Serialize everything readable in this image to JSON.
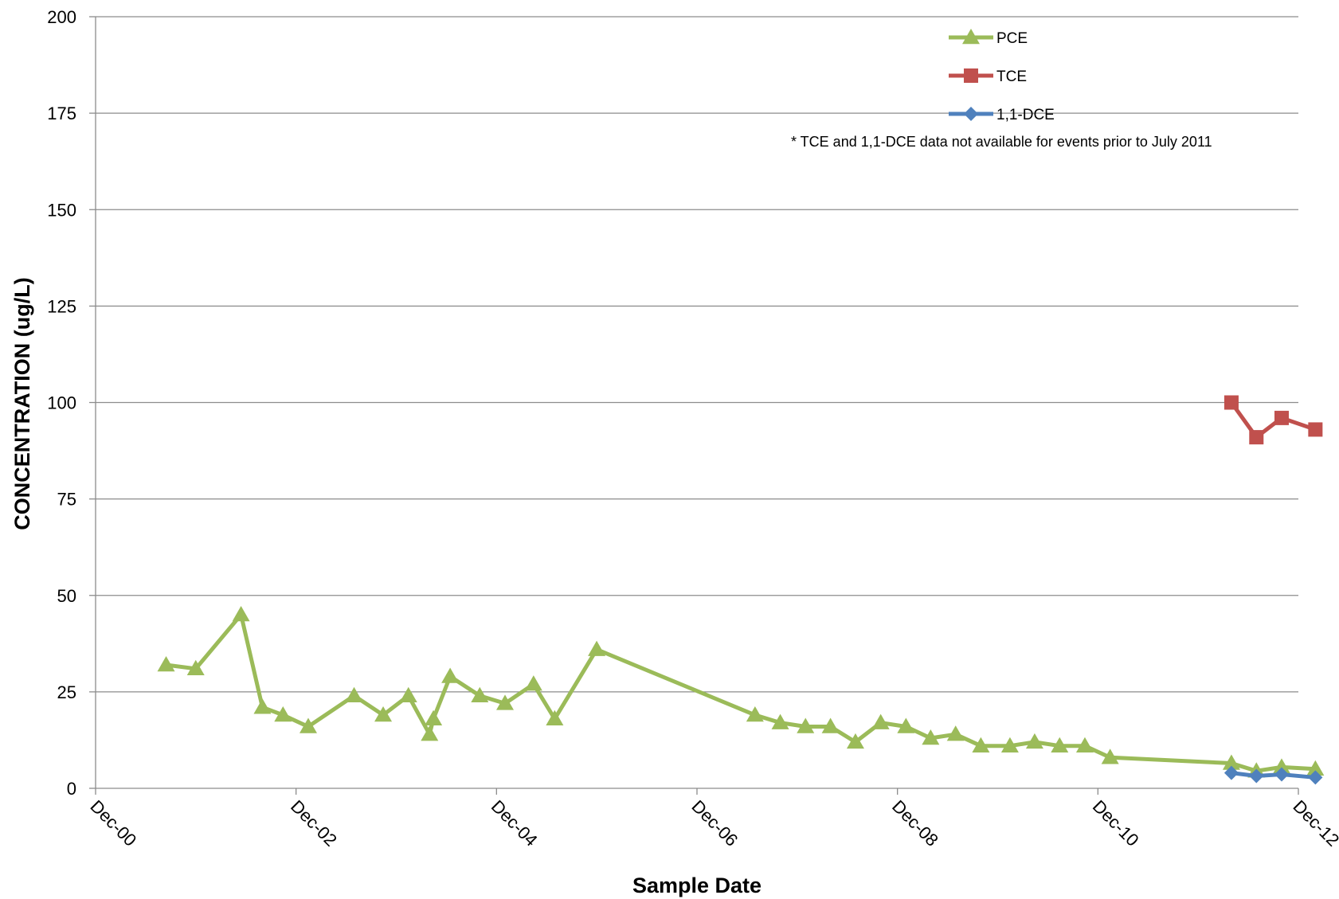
{
  "chart_data": {
    "type": "line",
    "xlabel": "Sample Date",
    "ylabel": "CONCENTRATION (ug/L)",
    "xlim": [
      "2000-12-01",
      "2012-12-01"
    ],
    "ylim": [
      0,
      200
    ],
    "x_ticks": [
      "Dec-00",
      "Dec-02",
      "Dec-04",
      "Dec-06",
      "Dec-08",
      "Dec-10",
      "Dec-12"
    ],
    "y_ticks": [
      0,
      25,
      50,
      75,
      100,
      125,
      150,
      175,
      200
    ],
    "grid": "horizontal",
    "legend_position": "top-right",
    "annotation": "* TCE and 1,1-DCE data not available for events prior to July 2011",
    "series": [
      {
        "name": "PCE",
        "color": "#9bbb59",
        "marker": "triangle",
        "points": [
          [
            "2001-08-15",
            32
          ],
          [
            "2001-12-01",
            31
          ],
          [
            "2002-05-15",
            45
          ],
          [
            "2002-08-01",
            21
          ],
          [
            "2002-10-15",
            19
          ],
          [
            "2003-01-15",
            16
          ],
          [
            "2003-07-01",
            24
          ],
          [
            "2003-10-15",
            19
          ],
          [
            "2004-01-15",
            24
          ],
          [
            "2004-04-01",
            14
          ],
          [
            "2004-04-15",
            18
          ],
          [
            "2004-06-15",
            29
          ],
          [
            "2004-10-01",
            24
          ],
          [
            "2005-01-01",
            22
          ],
          [
            "2005-04-15",
            27
          ],
          [
            "2005-07-01",
            18
          ],
          [
            "2005-12-01",
            36
          ],
          [
            "2007-07-01",
            19
          ],
          [
            "2007-10-01",
            17
          ],
          [
            "2008-01-01",
            16
          ],
          [
            "2008-04-01",
            16
          ],
          [
            "2008-07-01",
            12
          ],
          [
            "2008-10-01",
            17
          ],
          [
            "2009-01-01",
            16
          ],
          [
            "2009-04-01",
            13
          ],
          [
            "2009-07-01",
            14
          ],
          [
            "2009-10-01",
            11
          ],
          [
            "2010-01-15",
            11
          ],
          [
            "2010-04-15",
            12
          ],
          [
            "2010-07-15",
            11
          ],
          [
            "2010-10-15",
            11
          ],
          [
            "2011-01-15",
            8
          ],
          [
            "2012-04-01",
            6.5
          ],
          [
            "2012-07-01",
            4.5
          ],
          [
            "2012-10-01",
            5.5
          ],
          [
            "2013-02-01",
            5
          ]
        ]
      },
      {
        "name": "TCE",
        "color": "#c0504d",
        "marker": "square",
        "points": [
          [
            "2012-04-01",
            100
          ],
          [
            "2012-07-01",
            91
          ],
          [
            "2012-10-01",
            96
          ],
          [
            "2013-02-01",
            93
          ]
        ]
      },
      {
        "name": "1,1-DCE",
        "color": "#4f81bd",
        "marker": "diamond",
        "points": [
          [
            "2012-04-01",
            4
          ],
          [
            "2012-07-01",
            3.2
          ],
          [
            "2012-10-01",
            3.6
          ],
          [
            "2013-02-01",
            2.8
          ]
        ]
      }
    ]
  }
}
